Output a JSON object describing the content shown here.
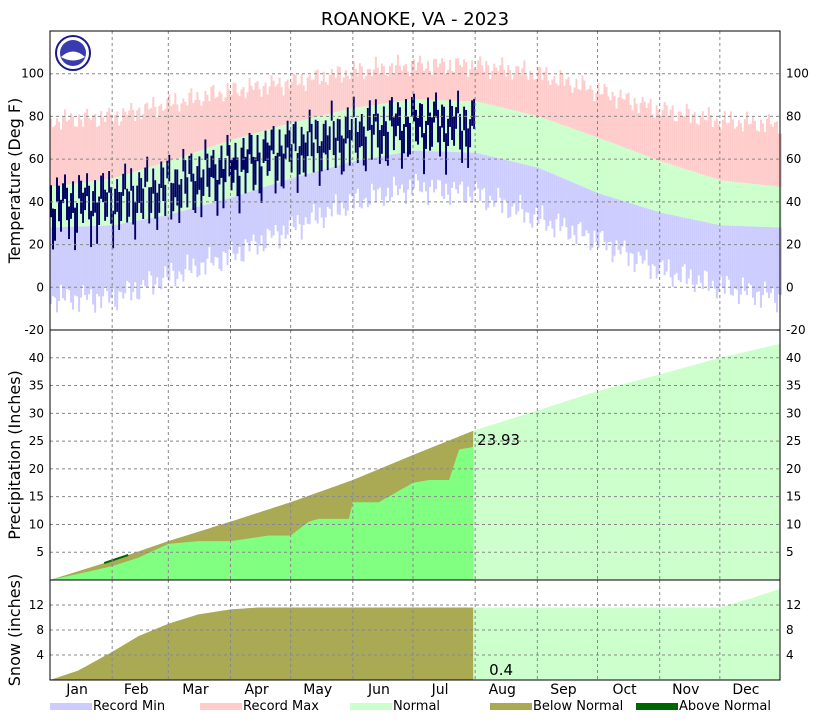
{
  "title": "ROANOKE, VA - 2023",
  "colors": {
    "record_min": "#ccccff",
    "record_max": "#ffcccc",
    "normal": "#ccffcc",
    "observed_temp": "#000066",
    "precip_obs": "#80ff80",
    "below_normal": "#aaaa55",
    "above_normal": "#006600",
    "grid": "#888888"
  },
  "months": [
    "Jan",
    "Feb",
    "Mar",
    "Apr",
    "May",
    "Jun",
    "Jul",
    "Aug",
    "Sep",
    "Oct",
    "Nov",
    "Dec"
  ],
  "legend": [
    {
      "label": "Record Min",
      "color": "#ccccff"
    },
    {
      "label": "Record Max",
      "color": "#ffcccc"
    },
    {
      "label": "Normal",
      "color": "#ccffcc"
    },
    {
      "label": "Below Normal",
      "color": "#aaaa55"
    },
    {
      "label": "Above Normal",
      "color": "#006600"
    }
  ],
  "chart_data": [
    {
      "type": "area",
      "panel": "temperature",
      "ylabel": "Temperature (Deg F)",
      "ylim": [
        -20,
        120
      ],
      "yticks": [
        -20,
        0,
        20,
        40,
        60,
        80,
        100
      ],
      "grid": true,
      "x_unit": "day of year",
      "observed_through_day": 212,
      "series": [
        {
          "name": "Record Min",
          "x": [
            1,
            32,
            60,
            91,
            121,
            152,
            182,
            213,
            244,
            274,
            305,
            335,
            365
          ],
          "values": [
            -5,
            -5,
            5,
            15,
            28,
            40,
            47,
            44,
            32,
            22,
            8,
            0,
            -5
          ]
        },
        {
          "name": "Record Max",
          "x": [
            1,
            32,
            60,
            91,
            121,
            152,
            182,
            213,
            244,
            274,
            305,
            335,
            365
          ],
          "values": [
            78,
            80,
            86,
            92,
            96,
            101,
            104,
            104,
            100,
            92,
            83,
            78,
            76
          ]
        },
        {
          "name": "Normal",
          "x": [
            1,
            32,
            60,
            91,
            121,
            152,
            182,
            213,
            244,
            274,
            305,
            335,
            365
          ],
          "values": [
            [
              28,
              47
            ],
            [
              29,
              51
            ],
            [
              34,
              59
            ],
            [
              42,
              69
            ],
            [
              51,
              77
            ],
            [
              59,
              84
            ],
            [
              64,
              88
            ],
            [
              63,
              87
            ],
            [
              56,
              80
            ],
            [
              44,
              70
            ],
            [
              35,
              59
            ],
            [
              29,
              50
            ],
            [
              28,
              47
            ]
          ]
        }
      ]
    },
    {
      "type": "area",
      "panel": "precipitation",
      "ylabel": "Precipitation (Inches)",
      "ylim": [
        0,
        45
      ],
      "yticks": [
        5,
        10,
        15,
        20,
        25,
        30,
        35,
        40
      ],
      "grid": true,
      "annotation": "23.93",
      "series": [
        {
          "name": "Normal",
          "x": [
            1,
            32,
            60,
            91,
            121,
            152,
            182,
            213,
            244,
            274,
            305,
            335,
            365
          ],
          "values": [
            0,
            3.5,
            7,
            10.5,
            14,
            18,
            22.5,
            27,
            30.5,
            34,
            37,
            40,
            42.5
          ]
        },
        {
          "name": "Observed",
          "x": [
            1,
            20,
            32,
            45,
            60,
            75,
            91,
            110,
            121,
            130,
            135,
            150,
            152,
            165,
            182,
            190,
            200,
            205,
            212
          ],
          "values": [
            0,
            1.5,
            2.5,
            4,
            6.5,
            7,
            7,
            8,
            8,
            10.5,
            11,
            11,
            14,
            14,
            17.5,
            18,
            18,
            23.5,
            23.93
          ]
        }
      ]
    },
    {
      "type": "area",
      "panel": "snow",
      "ylabel": "Snow (inches)",
      "ylim": [
        0,
        16
      ],
      "yticks": [
        4,
        8,
        12
      ],
      "grid": true,
      "annotation": "0.4",
      "series": [
        {
          "name": "Normal",
          "x": [
            1,
            15,
            32,
            45,
            60,
            75,
            91,
            105,
            120,
            335,
            350,
            365
          ],
          "values": [
            0,
            1.5,
            4.5,
            7,
            9,
            10.5,
            11.3,
            11.6,
            11.6,
            11.6,
            13,
            14.6
          ]
        },
        {
          "name": "Observed",
          "x": [
            1,
            45,
            212
          ],
          "values": [
            0,
            0.4,
            0.4
          ]
        }
      ]
    }
  ]
}
